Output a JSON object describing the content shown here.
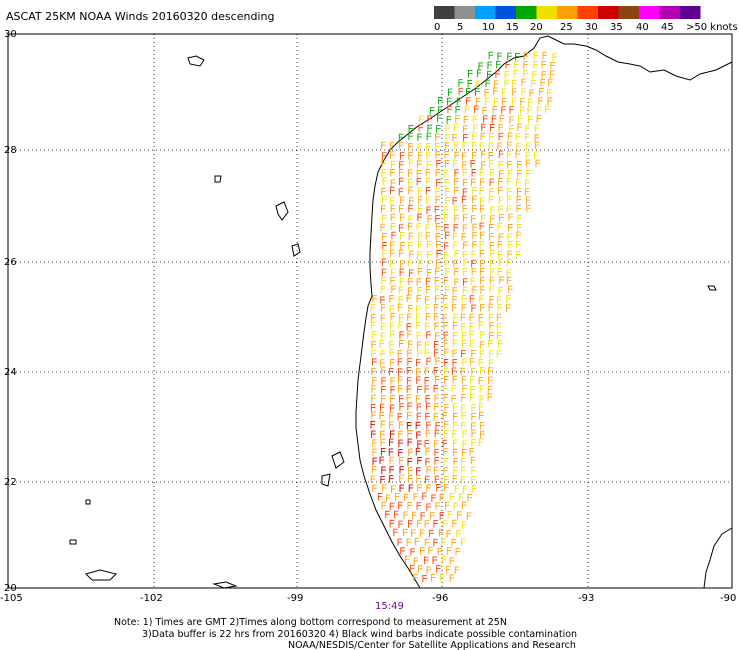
{
  "header": {
    "title": "ASCAT 25KM NOAA Winds 20160320 descending"
  },
  "legend": {
    "labels": [
      "0",
      "5",
      "10",
      "15",
      "20",
      "25",
      "30",
      "35",
      "40",
      "45",
      ">50 knots"
    ],
    "colors": [
      "#404040",
      "#909090",
      "#00a0ff",
      "#0050e0",
      "#00a800",
      "#f0e000",
      "#ffa000",
      "#ff4000",
      "#d00000",
      "#8b4513",
      "#ff00ff",
      "#b000b0",
      "#600090"
    ]
  },
  "axes": {
    "lat_labels": [
      "30",
      "28",
      "26",
      "24",
      "22",
      "20"
    ],
    "lon_labels": [
      "-105",
      "-102",
      "-99",
      "-96",
      "-93",
      "-90"
    ]
  },
  "pass_time": "15:49",
  "notes": {
    "line1": "Note: 1) Times are GMT 2)Times along bottom correspond to measurement at 25N",
    "line2": "3)Data buffer is 22 hrs from 20160320 4) Black wind barbs indicate possible contamination",
    "line3": "NOAA/NESDIS/Center for Satellite Applications and Research"
  },
  "map_region": "Western Gulf of Mexico (Texas / Tamaulipas coast)"
}
